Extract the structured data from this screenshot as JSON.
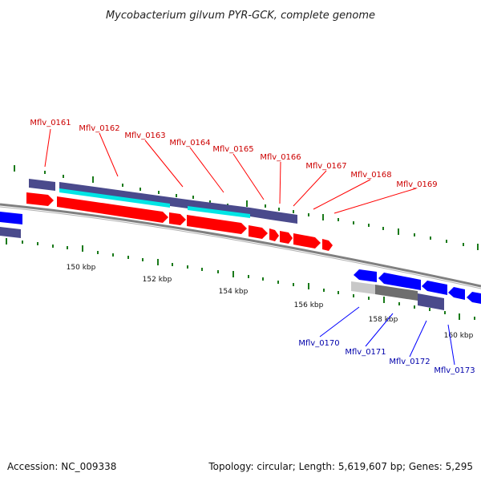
{
  "title": "Mycobacterium gilvum PYR-GCK, complete genome",
  "footer": {
    "accession": "Accession: NC_009338",
    "summary": "Topology: circular; Length: 5,619,607 bp; Genes: 5,295"
  },
  "colors": {
    "backbone": "#808080",
    "tick": "#1a7a1a",
    "gene_fwd": "#ff0000",
    "gene_rev": "#0000ff",
    "cds": "#4a4a8c",
    "rna": "#00e5e5",
    "pseudo_light": "#c8c8c8",
    "pseudo_dark": "#6e6e6e",
    "label_fwd": "#cc0000",
    "label_rev": "#0000aa"
  },
  "scale_labels": [
    "150 kbp",
    "152 kbp",
    "154 kbp",
    "156 kbp",
    "158 kbp",
    "160 kbp"
  ],
  "forward_labels": [
    "Mflv_0161",
    "Mflv_0162",
    "Mflv_0163",
    "Mflv_0164",
    "Mflv_0165",
    "Mflv_0166",
    "Mflv_0167",
    "Mflv_0168",
    "Mflv_0169"
  ],
  "reverse_labels": [
    "Mflv_0170",
    "Mflv_0171",
    "Mflv_0172",
    "Mflv_0173"
  ]
}
